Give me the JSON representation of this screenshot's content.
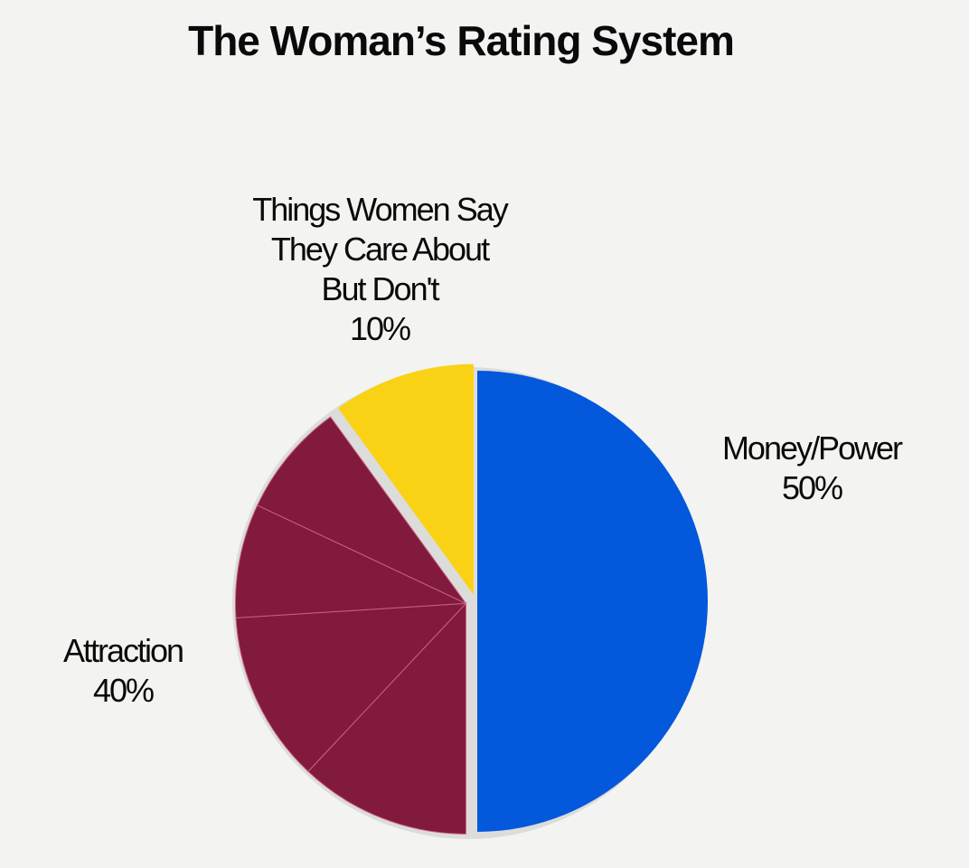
{
  "chart_data": {
    "type": "pie",
    "title": "The Woman’s Rating System",
    "slices": [
      {
        "key": "money",
        "label_lines": [
          "Money/Power"
        ],
        "percent_label": "50%",
        "value": 50,
        "color": "#0358dc",
        "exploded": false,
        "subdivisions": 1
      },
      {
        "key": "attraction",
        "label_lines": [
          "Attraction"
        ],
        "percent_label": "40%",
        "value": 40,
        "color": "#811a3d",
        "exploded": true,
        "subdivisions": [
          12,
          12,
          8,
          8
        ]
      },
      {
        "key": "things",
        "label_lines": [
          "Things Women Say",
          "They Care About",
          "But Don't"
        ],
        "percent_label": "10%",
        "value": 10,
        "color": "#fad215",
        "exploded": true,
        "subdivisions": 1
      }
    ]
  }
}
